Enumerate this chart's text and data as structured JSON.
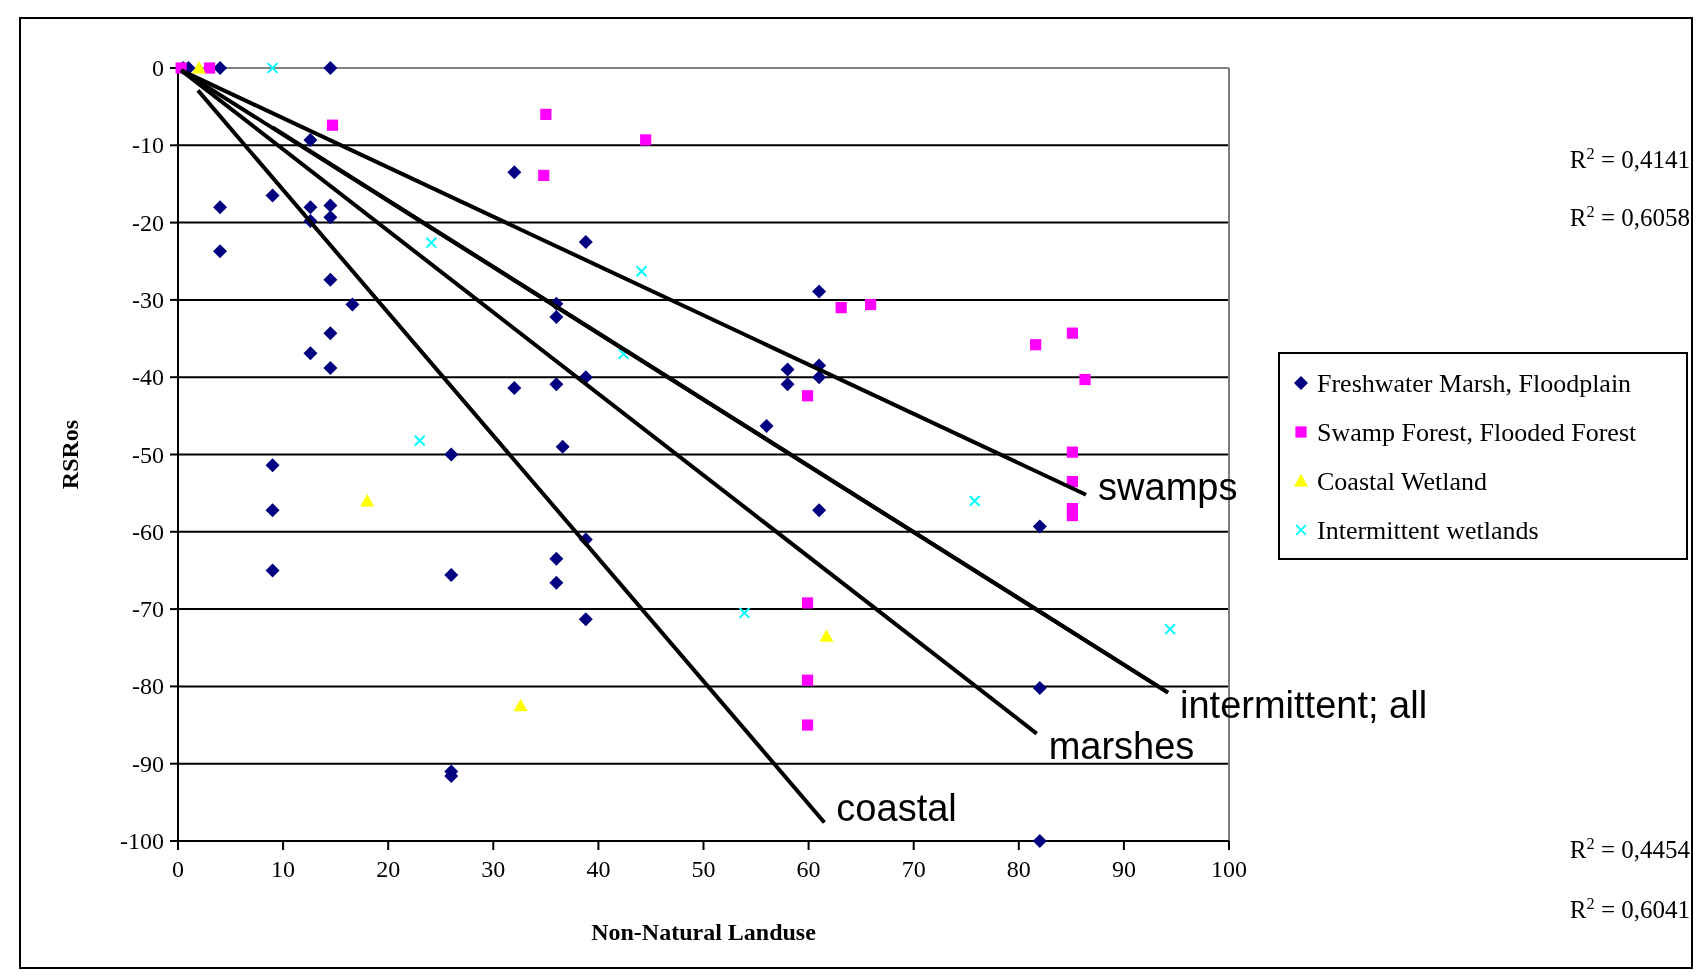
{
  "chart_data": {
    "type": "scatter",
    "xlabel": "Non-Natural Landuse",
    "ylabel": "RSRos",
    "xlim": [
      0,
      100
    ],
    "ylim": [
      -100,
      0
    ],
    "xticks": [
      0,
      10,
      20,
      30,
      40,
      50,
      60,
      70,
      80,
      90,
      100
    ],
    "yticks": [
      -100,
      -90,
      -80,
      -70,
      -60,
      -50,
      -40,
      -30,
      -20,
      -10,
      0
    ],
    "grid": "y",
    "legend": "right",
    "series": [
      {
        "name": "Freshwater Marsh, Floodplain",
        "color": "#000080",
        "marker": "diamond",
        "x": [
          0.5,
          1,
          4,
          14.5,
          12.6,
          4,
          9,
          12.6,
          14.5,
          12.6,
          14.5,
          4,
          14.5,
          16.6,
          14.5,
          12.6,
          14.5,
          32,
          38.8,
          36,
          36,
          32,
          36,
          38.8,
          36.6,
          9,
          9,
          9,
          26,
          26,
          36,
          36,
          38.8,
          38.8,
          26,
          26,
          61,
          58,
          58,
          61,
          61,
          56,
          61,
          82,
          82,
          82
        ],
        "values": [
          0,
          0,
          0,
          0,
          -9.3,
          -18,
          -16.5,
          -18,
          -17.8,
          -19.8,
          -19.3,
          -23.7,
          -27.4,
          -30.6,
          -34.3,
          -36.9,
          -38.8,
          -13.5,
          -22.5,
          -30.5,
          -32.2,
          -41.4,
          -40.9,
          -40,
          -49,
          -51.4,
          -57.2,
          -65,
          -50,
          -65.6,
          -63.5,
          -66.6,
          -61,
          -71.3,
          -91,
          -91.6,
          -28.9,
          -39,
          -40.9,
          -38.5,
          -40,
          -46.3,
          -57.2,
          -59.3,
          -80.2,
          -100
        ]
      },
      {
        "name": "Swamp Forest, Flooded Forest",
        "color": "#ff00ff",
        "marker": "square",
        "x": [
          0.3,
          3,
          14.7,
          35,
          34.8,
          44.5,
          63.1,
          65.9,
          81.6,
          85.1,
          86.3,
          59.9,
          85.1,
          85.1,
          85.1,
          85.1,
          59.9,
          59.9,
          59.9
        ],
        "values": [
          0,
          0,
          -7.4,
          -6,
          -13.9,
          -9.3,
          -31,
          -30.6,
          -35.8,
          -34.3,
          -40.3,
          -42.4,
          -49.7,
          -53.5,
          -57,
          -57.9,
          -69.2,
          -79.2,
          -85
        ]
      },
      {
        "name": "Coastal Wetland",
        "color": "#ffff00",
        "marker": "triangle",
        "x": [
          2,
          18,
          32.6,
          61.7
        ],
        "values": [
          0,
          -56,
          -82.5,
          -73.5
        ]
      },
      {
        "name": "Intermittent wetlands",
        "color": "#00ffff",
        "marker": "cross",
        "x": [
          9,
          24.1,
          23,
          44.1,
          42.4,
          53.9,
          75.8,
          94.4
        ],
        "values": [
          0,
          -22.6,
          -48.2,
          -26.3,
          -37,
          -70.5,
          -56,
          -72.6
        ]
      },
      {
        "type": "line",
        "color": "#000000",
        "marker": "none",
        "x": [
          0.3,
          86.4
        ],
        "values": [
          -0.3,
          -55.2
        ]
      },
      {
        "type": "line",
        "color": "#000000",
        "marker": "none",
        "x": [
          9,
          94.2
        ],
        "values": [
          -7.7,
          -80.8
        ]
      },
      {
        "type": "line",
        "color": "#000000",
        "marker": "none",
        "x": [
          0.3,
          94.2
        ],
        "values": [
          -0.3,
          -80.8
        ]
      },
      {
        "type": "line",
        "color": "#000000",
        "marker": "none",
        "x": [
          0.3,
          81.7
        ],
        "values": [
          -0.3,
          -86.1
        ]
      },
      {
        "type": "line",
        "color": "#000000",
        "marker": "none",
        "x": [
          1.9,
          61.5
        ],
        "values": [
          -2.9,
          -97.6
        ]
      }
    ],
    "annotations": [
      {
        "text": "swamps",
        "x": 86.4,
        "y": -55.2
      },
      {
        "text": "intermittent; all",
        "x": 94.2,
        "y": -80.8
      },
      {
        "text": "marshes",
        "x": 81.7,
        "y": -86.1
      },
      {
        "text": "coastal",
        "x": 61.5,
        "y": -97.6
      },
      "R$^{2}$ = 0,4141",
      "R$^{2}$ = 0,6058",
      "R$^{2}$ = 0,4454",
      "R$^{2}$ = 0,6041"
    ]
  }
}
